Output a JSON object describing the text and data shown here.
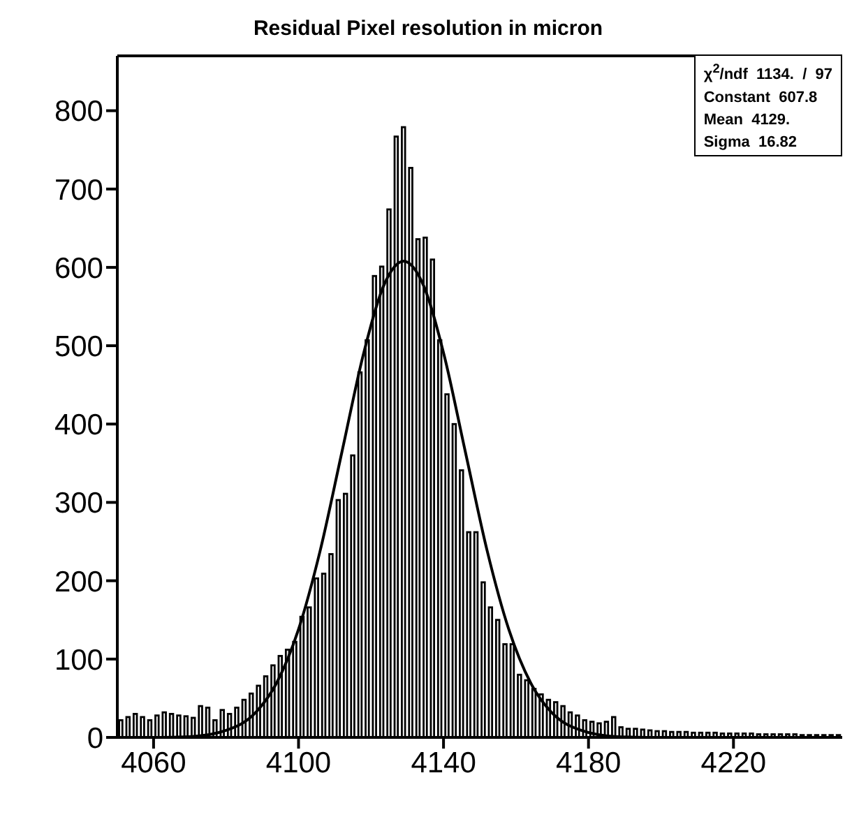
{
  "chart_data": {
    "type": "histogram",
    "title": "Residual Pixel resolution in micron",
    "bins": [
      4050,
      4052,
      4054,
      4056,
      4058,
      4060,
      4062,
      4064,
      4066,
      4068,
      4070,
      4072,
      4074,
      4076,
      4078,
      4080,
      4082,
      4084,
      4086,
      4088,
      4090,
      4092,
      4094,
      4096,
      4098,
      4100,
      4102,
      4104,
      4106,
      4108,
      4110,
      4112,
      4114,
      4116,
      4118,
      4120,
      4122,
      4124,
      4126,
      4128,
      4130,
      4132,
      4134,
      4136,
      4138,
      4140,
      4142,
      4144,
      4146,
      4148,
      4150,
      4152,
      4154,
      4156,
      4158,
      4160,
      4162,
      4164,
      4166,
      4168,
      4170,
      4172,
      4174,
      4176,
      4178,
      4180,
      4182,
      4184,
      4186,
      4188,
      4190,
      4192,
      4194,
      4196,
      4198,
      4200,
      4202,
      4204,
      4206,
      4208,
      4210,
      4212,
      4214,
      4216,
      4218,
      4220,
      4222,
      4224,
      4226,
      4228,
      4230,
      4232,
      4234,
      4236,
      4238,
      4240,
      4242,
      4244,
      4246,
      4248,
      4250
    ],
    "values": [
      22,
      26,
      30,
      26,
      22,
      28,
      32,
      30,
      28,
      27,
      25,
      40,
      38,
      22,
      35,
      30,
      38,
      48,
      56,
      66,
      78,
      92,
      104,
      112,
      122,
      154,
      166,
      203,
      209,
      234,
      303,
      311,
      360,
      466,
      507,
      589,
      601,
      674,
      767,
      779,
      727,
      636,
      638,
      610,
      507,
      438,
      400,
      341,
      262,
      262,
      198,
      166,
      150,
      119,
      119,
      80,
      73,
      62,
      55,
      48,
      45,
      40,
      32,
      28,
      22,
      20,
      18,
      20,
      26,
      13,
      11,
      11,
      10,
      9,
      8,
      8,
      7,
      7,
      7,
      6,
      6,
      6,
      6,
      5,
      5,
      5,
      5,
      5,
      4,
      4,
      4,
      4,
      4,
      4,
      3,
      3,
      3,
      3,
      3,
      3
    ],
    "color": "#000000",
    "series": [
      {
        "type": "line",
        "color": "#000000",
        "x": [
          4060,
          4070,
          4080,
          4088,
          4094,
          4100,
          4106,
          4112,
          4118,
          4124,
          4129,
          4134,
          4140,
          4146,
          4152,
          4158,
          4164,
          4170,
          4178,
          4188,
          4200
        ],
        "values": [
          0,
          1,
          9,
          31,
          70,
          138,
          239,
          365,
          491,
          582,
          608,
          582,
          491,
          365,
          239,
          138,
          70,
          31,
          9,
          1,
          0
        ]
      }
    ],
    "xlim": [
      4050,
      4250
    ],
    "xticks": [
      4060,
      4100,
      4140,
      4180,
      4220
    ],
    "ylim": [
      0,
      870
    ],
    "yticks": [
      0,
      100,
      200,
      300,
      400,
      500,
      600,
      700,
      800
    ],
    "grid": false,
    "legend": false,
    "marker": "none",
    "line_style": "solid",
    "annotations": [
      "χ$^{2}$/ndf  1134.  /  97",
      "Constant  607.8",
      "Mean  4129.",
      "Sigma  16.82"
    ]
  }
}
